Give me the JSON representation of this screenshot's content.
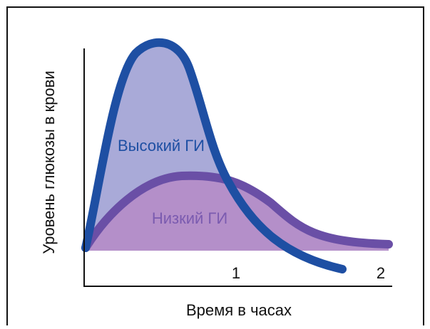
{
  "curves": {
    "high": {
      "label": "Высокий ГИ"
    },
    "low": {
      "label": "Низкий ГИ"
    }
  },
  "axes": {
    "y_label": "Уровень глюкозы в крови",
    "x_label": "Время в часах",
    "x_ticks": [
      "1",
      "2"
    ]
  }
}
